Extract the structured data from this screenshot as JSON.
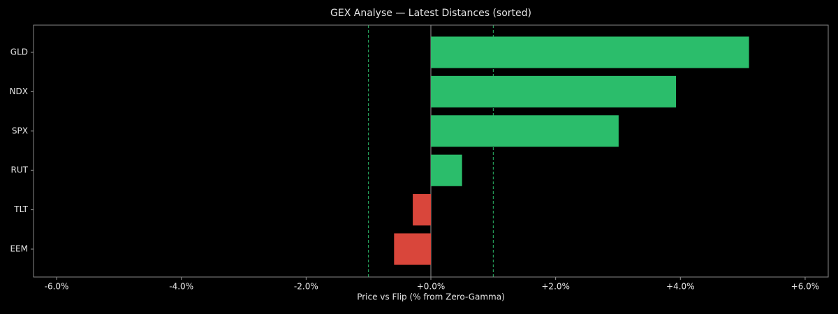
{
  "chart_data": {
    "type": "barh",
    "title": "GEX Analyse — Latest Distances (sorted)",
    "x_label": "Price vs Flip (% from Zero-Gamma)",
    "categories": [
      "GLD",
      "NDX",
      "SPX",
      "RUT",
      "TLT",
      "EEM"
    ],
    "values": [
      5.1,
      3.93,
      3.01,
      0.5,
      -0.29,
      -0.59
    ],
    "positive_color": "#2bbd6b",
    "negative_color": "#d9463b",
    "reference_lines": [
      -1,
      1
    ],
    "reference_color": "#2bbd6b",
    "xlim": [
      -6.37,
      6.37
    ],
    "xticks": [
      {
        "value": -6,
        "label": "-6.0%"
      },
      {
        "value": -4,
        "label": "-4.0%"
      },
      {
        "value": -2,
        "label": "-2.0%"
      },
      {
        "value": 0,
        "label": "+0.0%"
      },
      {
        "value": 2,
        "label": "+2.0%"
      },
      {
        "value": 4,
        "label": "+4.0%"
      },
      {
        "value": 6,
        "label": "+6.0%"
      }
    ],
    "grid": false
  }
}
